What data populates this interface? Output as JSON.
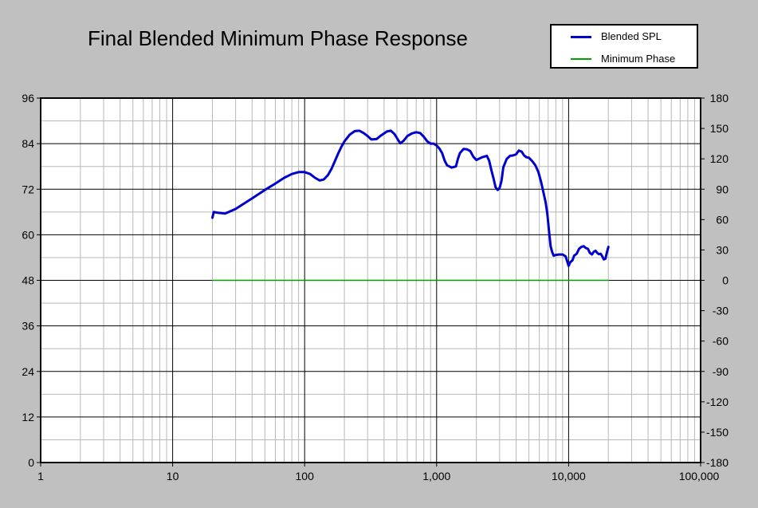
{
  "chart_data": {
    "type": "line",
    "title": "Final Blended Minimum Phase Response",
    "x_scale": "log",
    "xlim": [
      1,
      100000
    ],
    "x_ticks": [
      1,
      10,
      100,
      1000,
      10000,
      100000
    ],
    "x_tick_labels": [
      "1",
      "10",
      "100",
      "1,000",
      "10,000",
      "100,000"
    ],
    "ylim": [
      0,
      96
    ],
    "y_ticks": [
      0,
      12,
      24,
      36,
      48,
      60,
      72,
      84,
      96
    ],
    "y_tick_labels": [
      "0",
      "12",
      "24",
      "36",
      "48",
      "60",
      "72",
      "84",
      "96"
    ],
    "y2lim": [
      -180,
      180
    ],
    "y2_ticks": [
      -180,
      -150,
      -120,
      -90,
      -60,
      -30,
      0,
      30,
      60,
      90,
      120,
      150,
      180
    ],
    "y2_tick_labels": [
      "-180",
      "-150",
      "-120",
      "-90",
      "-60",
      "-30",
      "0",
      "30",
      "60",
      "90",
      "120",
      "150",
      "180"
    ],
    "grid": true,
    "minor_grid": true,
    "legend_position": "top-right",
    "series": [
      {
        "name": "Blended SPL",
        "axis": "left",
        "color": "#0000cc",
        "points": [
          [
            20,
            64.5
          ],
          [
            20.5,
            66
          ],
          [
            22,
            65.8
          ],
          [
            25,
            65.6
          ],
          [
            30,
            66.8
          ],
          [
            40,
            69.6
          ],
          [
            50,
            71.8
          ],
          [
            60,
            73.5
          ],
          [
            70,
            75.0
          ],
          [
            80,
            76.0
          ],
          [
            90,
            76.5
          ],
          [
            100,
            76.5
          ],
          [
            110,
            76.0
          ],
          [
            120,
            75.0
          ],
          [
            130,
            74.3
          ],
          [
            140,
            74.6
          ],
          [
            150,
            75.7
          ],
          [
            160,
            77.4
          ],
          [
            170,
            79.5
          ],
          [
            180,
            81.5
          ],
          [
            190,
            83.2
          ],
          [
            200,
            84.6
          ],
          [
            220,
            86.4
          ],
          [
            240,
            87.3
          ],
          [
            260,
            87.4
          ],
          [
            280,
            86.8
          ],
          [
            300,
            86.0
          ],
          [
            320,
            85.1
          ],
          [
            350,
            85.2
          ],
          [
            380,
            86.2
          ],
          [
            420,
            87.2
          ],
          [
            450,
            87.4
          ],
          [
            480,
            86.5
          ],
          [
            510,
            85.0
          ],
          [
            530,
            84.1
          ],
          [
            560,
            84.7
          ],
          [
            600,
            86.0
          ],
          [
            650,
            86.7
          ],
          [
            700,
            87.0
          ],
          [
            750,
            86.8
          ],
          [
            800,
            85.8
          ],
          [
            850,
            84.6
          ],
          [
            900,
            84.0
          ],
          [
            950,
            84.0
          ],
          [
            1000,
            83.5
          ],
          [
            1050,
            82.7
          ],
          [
            1100,
            81.5
          ],
          [
            1150,
            79.5
          ],
          [
            1200,
            78.3
          ],
          [
            1300,
            77.7
          ],
          [
            1400,
            78.0
          ],
          [
            1450,
            80.0
          ],
          [
            1500,
            81.5
          ],
          [
            1600,
            82.6
          ],
          [
            1700,
            82.5
          ],
          [
            1800,
            82.0
          ],
          [
            1900,
            80.5
          ],
          [
            2000,
            79.7
          ],
          [
            2200,
            80.4
          ],
          [
            2400,
            80.8
          ],
          [
            2500,
            79.5
          ],
          [
            2600,
            77.0
          ],
          [
            2700,
            74.8
          ],
          [
            2800,
            72.5
          ],
          [
            2900,
            71.8
          ],
          [
            3000,
            72.3
          ],
          [
            3100,
            74.2
          ],
          [
            3200,
            77.8
          ],
          [
            3400,
            80.0
          ],
          [
            3600,
            80.8
          ],
          [
            3800,
            80.9
          ],
          [
            4000,
            81.2
          ],
          [
            4200,
            82.2
          ],
          [
            4400,
            81.9
          ],
          [
            4600,
            80.9
          ],
          [
            4800,
            80.4
          ],
          [
            5000,
            80.3
          ],
          [
            5300,
            79.4
          ],
          [
            5600,
            78.3
          ],
          [
            5900,
            76.5
          ],
          [
            6200,
            73.8
          ],
          [
            6500,
            70.6
          ],
          [
            6700,
            68.5
          ],
          [
            6900,
            65.5
          ],
          [
            7100,
            61.0
          ],
          [
            7300,
            57.0
          ],
          [
            7500,
            55.5
          ],
          [
            7700,
            54.5
          ],
          [
            8000,
            54.7
          ],
          [
            8500,
            54.8
          ],
          [
            9000,
            54.8
          ],
          [
            9500,
            54.3
          ],
          [
            9800,
            52.8
          ],
          [
            10000,
            51.8
          ],
          [
            10300,
            52.8
          ],
          [
            10700,
            53.3
          ],
          [
            11000,
            54.5
          ],
          [
            11500,
            55.0
          ],
          [
            12000,
            56.3
          ],
          [
            12500,
            56.8
          ],
          [
            13000,
            57.0
          ],
          [
            13500,
            56.5
          ],
          [
            14000,
            56.3
          ],
          [
            14500,
            55.2
          ],
          [
            15000,
            54.8
          ],
          [
            15500,
            55.5
          ],
          [
            16000,
            55.8
          ],
          [
            16500,
            55.2
          ],
          [
            17000,
            54.9
          ],
          [
            17500,
            55.0
          ],
          [
            18000,
            54.3
          ],
          [
            18500,
            53.5
          ],
          [
            19000,
            53.7
          ],
          [
            19500,
            55.3
          ],
          [
            20000,
            56.8
          ]
        ]
      },
      {
        "name": "Minimum Phase",
        "axis": "right",
        "color": "#00a000",
        "points": [
          [
            20,
            0
          ],
          [
            20000,
            0
          ]
        ]
      }
    ]
  }
}
